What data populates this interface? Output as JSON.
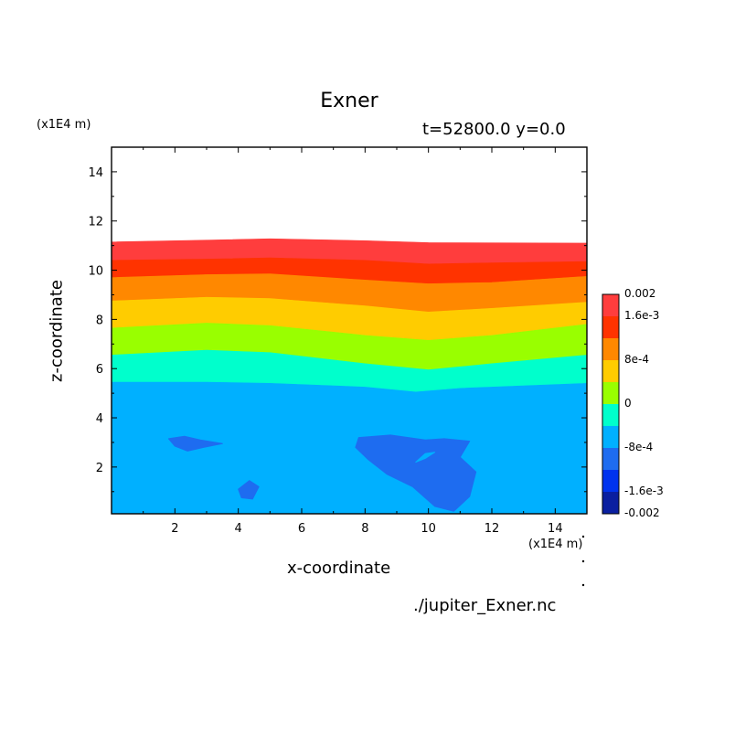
{
  "chart_data": {
    "type": "heatmap",
    "title": "Exner",
    "subtitle": "t=52800.0 y=0.0",
    "xlabel": "x-coordinate",
    "ylabel": "z-coordinate",
    "x_unit": "(x1E4 m)",
    "y_unit": "(x1E4 m)",
    "xlim": [
      0,
      15
    ],
    "ylim": [
      0.1,
      15
    ],
    "x_ticks": [
      "2",
      "4",
      "6",
      "8",
      "10",
      "12",
      "14"
    ],
    "y_ticks": [
      "2",
      "4",
      "6",
      "8",
      "10",
      "12",
      "14"
    ],
    "source_file": "./jupiter_Exner.nc",
    "colorbar": {
      "levels": [
        -0.002,
        -0.0016,
        -0.0012,
        -0.0008,
        -0.0004,
        0,
        0.0004,
        0.0008,
        0.0012,
        0.0016,
        0.002
      ],
      "colors": [
        "#0a1fa0",
        "#0033ee",
        "#1e6cf0",
        "#00b0ff",
        "#00ffcc",
        "#99ff00",
        "#ffcc00",
        "#ff8800",
        "#ff3300",
        "#ff3d3d"
      ],
      "tick_labels": [
        "0.002",
        "1.6e-3",
        "8e-4",
        "0",
        "-8e-4",
        "-1.6e-3",
        "-0.002"
      ]
    },
    "contours": [
      {
        "color": "#ff3d3d",
        "upper": [
          [
            0,
            11.15
          ],
          [
            3,
            11.22
          ],
          [
            5,
            11.28
          ],
          [
            8,
            11.2
          ],
          [
            10,
            11.12
          ],
          [
            15,
            11.1
          ]
        ],
        "lower": [
          [
            0,
            10.4
          ],
          [
            3,
            10.45
          ],
          [
            5,
            10.5
          ],
          [
            8,
            10.4
          ],
          [
            10,
            10.25
          ],
          [
            12,
            10.3
          ],
          [
            15,
            10.35
          ]
        ]
      },
      {
        "color": "#ff3300",
        "upper": [
          [
            0,
            10.4
          ],
          [
            3,
            10.45
          ],
          [
            5,
            10.5
          ],
          [
            8,
            10.4
          ],
          [
            10,
            10.25
          ],
          [
            12,
            10.3
          ],
          [
            15,
            10.35
          ]
        ],
        "lower": [
          [
            0,
            9.7
          ],
          [
            3,
            9.82
          ],
          [
            5,
            9.85
          ],
          [
            8,
            9.6
          ],
          [
            10,
            9.45
          ],
          [
            12,
            9.5
          ],
          [
            15,
            9.75
          ]
        ]
      },
      {
        "color": "#ff8800",
        "upper": [
          [
            0,
            9.7
          ],
          [
            3,
            9.82
          ],
          [
            5,
            9.85
          ],
          [
            8,
            9.6
          ],
          [
            10,
            9.45
          ],
          [
            12,
            9.5
          ],
          [
            15,
            9.75
          ]
        ],
        "lower": [
          [
            0,
            8.75
          ],
          [
            3,
            8.9
          ],
          [
            5,
            8.85
          ],
          [
            8,
            8.55
          ],
          [
            10,
            8.3
          ],
          [
            12,
            8.45
          ],
          [
            15,
            8.7
          ]
        ]
      },
      {
        "color": "#ffcc00",
        "upper": [
          [
            0,
            8.75
          ],
          [
            3,
            8.9
          ],
          [
            5,
            8.85
          ],
          [
            8,
            8.55
          ],
          [
            10,
            8.3
          ],
          [
            12,
            8.45
          ],
          [
            15,
            8.7
          ]
        ],
        "lower": [
          [
            0,
            7.65
          ],
          [
            3,
            7.85
          ],
          [
            5,
            7.75
          ],
          [
            8,
            7.35
          ],
          [
            10,
            7.15
          ],
          [
            12,
            7.35
          ],
          [
            15,
            7.8
          ]
        ]
      },
      {
        "color": "#99ff00",
        "upper": [
          [
            0,
            7.65
          ],
          [
            3,
            7.85
          ],
          [
            5,
            7.75
          ],
          [
            8,
            7.35
          ],
          [
            10,
            7.15
          ],
          [
            12,
            7.35
          ],
          [
            15,
            7.8
          ]
        ],
        "lower": [
          [
            0,
            6.55
          ],
          [
            3,
            6.75
          ],
          [
            5,
            6.65
          ],
          [
            8,
            6.2
          ],
          [
            10,
            5.95
          ],
          [
            12,
            6.2
          ],
          [
            15,
            6.55
          ]
        ]
      },
      {
        "color": "#00ffcc",
        "upper": [
          [
            0,
            6.55
          ],
          [
            3,
            6.75
          ],
          [
            5,
            6.65
          ],
          [
            8,
            6.2
          ],
          [
            10,
            5.95
          ],
          [
            12,
            6.2
          ],
          [
            15,
            6.55
          ]
        ],
        "lower": [
          [
            0,
            5.45
          ],
          [
            3,
            5.45
          ],
          [
            5,
            5.4
          ],
          [
            8,
            5.25
          ],
          [
            9.6,
            5.05
          ],
          [
            11,
            5.2
          ],
          [
            15,
            5.4
          ]
        ]
      },
      {
        "color": "#00b0ff",
        "upper": [
          [
            0,
            5.45
          ],
          [
            3,
            5.45
          ],
          [
            5,
            5.4
          ],
          [
            8,
            5.25
          ],
          [
            9.6,
            5.05
          ],
          [
            11,
            5.2
          ],
          [
            15,
            5.4
          ]
        ],
        "lower": [
          [
            0,
            0.1
          ],
          [
            15,
            0.1
          ]
        ]
      }
    ],
    "blobs": [
      {
        "color": "#1e6cf0",
        "points": [
          [
            1.8,
            3.15
          ],
          [
            2.3,
            3.25
          ],
          [
            2.8,
            3.1
          ],
          [
            3.5,
            2.95
          ],
          [
            2.9,
            2.8
          ],
          [
            2.4,
            2.65
          ],
          [
            2.0,
            2.85
          ]
        ]
      },
      {
        "color": "#1e6cf0",
        "points": [
          [
            4.0,
            1.1
          ],
          [
            4.35,
            1.45
          ],
          [
            4.65,
            1.2
          ],
          [
            4.45,
            0.7
          ],
          [
            4.1,
            0.75
          ]
        ]
      },
      {
        "color": "#1e6cf0",
        "points": [
          [
            7.8,
            3.2
          ],
          [
            8.8,
            3.3
          ],
          [
            9.9,
            3.1
          ],
          [
            10.5,
            3.15
          ],
          [
            11.3,
            3.05
          ],
          [
            11.0,
            2.4
          ],
          [
            11.5,
            1.8
          ],
          [
            11.3,
            0.8
          ],
          [
            10.8,
            0.2
          ],
          [
            10.2,
            0.4
          ],
          [
            9.5,
            1.2
          ],
          [
            8.7,
            1.7
          ],
          [
            8.1,
            2.3
          ],
          [
            7.7,
            2.8
          ]
        ]
      },
      {
        "color": "#00b0ff",
        "points": [
          [
            9.6,
            2.2
          ],
          [
            9.9,
            2.35
          ],
          [
            10.2,
            2.6
          ],
          [
            9.9,
            2.55
          ]
        ]
      }
    ]
  }
}
